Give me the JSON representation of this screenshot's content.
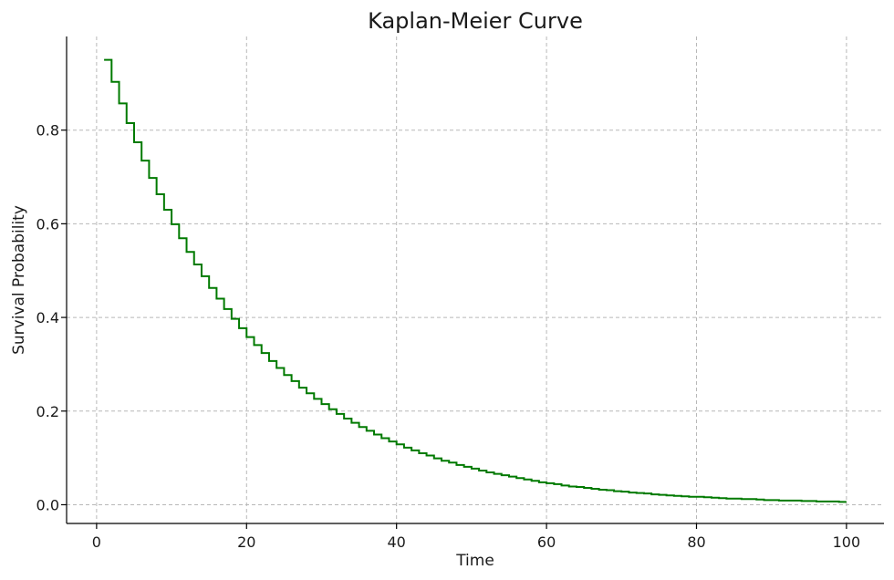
{
  "chart_data": {
    "type": "line",
    "step": true,
    "title": "Kaplan-Meier Curve",
    "xlabel": "Time",
    "ylabel": "Survival Probability",
    "xlim": [
      -4,
      105
    ],
    "ylim": [
      -0.04,
      1.0
    ],
    "xticks": [
      0,
      20,
      40,
      60,
      80,
      100
    ],
    "xtick_labels": [
      "0",
      "20",
      "40",
      "60",
      "80",
      "100"
    ],
    "yticks": [
      0.0,
      0.2,
      0.4,
      0.6,
      0.8
    ],
    "ytick_labels": [
      "0.0",
      "0.2",
      "0.4",
      "0.6",
      "0.8"
    ],
    "grid": true,
    "series": [
      {
        "color": "#007a00",
        "model": "exponential step, S(t) = 0.95^t, one step per unit time",
        "x": [
          1,
          2,
          3,
          4,
          5,
          6,
          7,
          8,
          9,
          10,
          11,
          12,
          13,
          14,
          15,
          16,
          17,
          18,
          19,
          20,
          21,
          22,
          23,
          24,
          25,
          26,
          27,
          28,
          29,
          30,
          31,
          32,
          33,
          34,
          35,
          36,
          37,
          38,
          39,
          40,
          41,
          42,
          43,
          44,
          45,
          46,
          47,
          48,
          49,
          50,
          51,
          52,
          53,
          54,
          55,
          56,
          57,
          58,
          59,
          60,
          61,
          62,
          63,
          64,
          65,
          66,
          67,
          68,
          69,
          70,
          71,
          72,
          73,
          74,
          75,
          76,
          77,
          78,
          79,
          80,
          81,
          82,
          83,
          84,
          85,
          86,
          87,
          88,
          89,
          90,
          91,
          92,
          93,
          94,
          95,
          96,
          97,
          98,
          99,
          100
        ],
        "y": [
          0.95,
          0.903,
          0.857,
          0.815,
          0.774,
          0.735,
          0.698,
          0.663,
          0.63,
          0.599,
          0.569,
          0.54,
          0.513,
          0.488,
          0.463,
          0.44,
          0.418,
          0.397,
          0.377,
          0.358,
          0.341,
          0.324,
          0.307,
          0.292,
          0.277,
          0.264,
          0.25,
          0.238,
          0.226,
          0.215,
          0.204,
          0.194,
          0.184,
          0.175,
          0.166,
          0.158,
          0.15,
          0.142,
          0.135,
          0.129,
          0.122,
          0.116,
          0.11,
          0.105,
          0.099,
          0.094,
          0.09,
          0.085,
          0.081,
          0.077,
          0.073,
          0.069,
          0.066,
          0.063,
          0.06,
          0.057,
          0.054,
          0.051,
          0.048,
          0.046,
          0.044,
          0.041,
          0.039,
          0.038,
          0.036,
          0.034,
          0.032,
          0.031,
          0.029,
          0.028,
          0.026,
          0.025,
          0.024,
          0.022,
          0.021,
          0.02,
          0.019,
          0.018,
          0.017,
          0.017,
          0.016,
          0.015,
          0.014,
          0.013,
          0.013,
          0.012,
          0.012,
          0.011,
          0.01,
          0.01,
          0.009,
          0.009,
          0.009,
          0.008,
          0.008,
          0.007,
          0.007,
          0.007,
          0.006,
          0.006
        ]
      }
    ]
  }
}
